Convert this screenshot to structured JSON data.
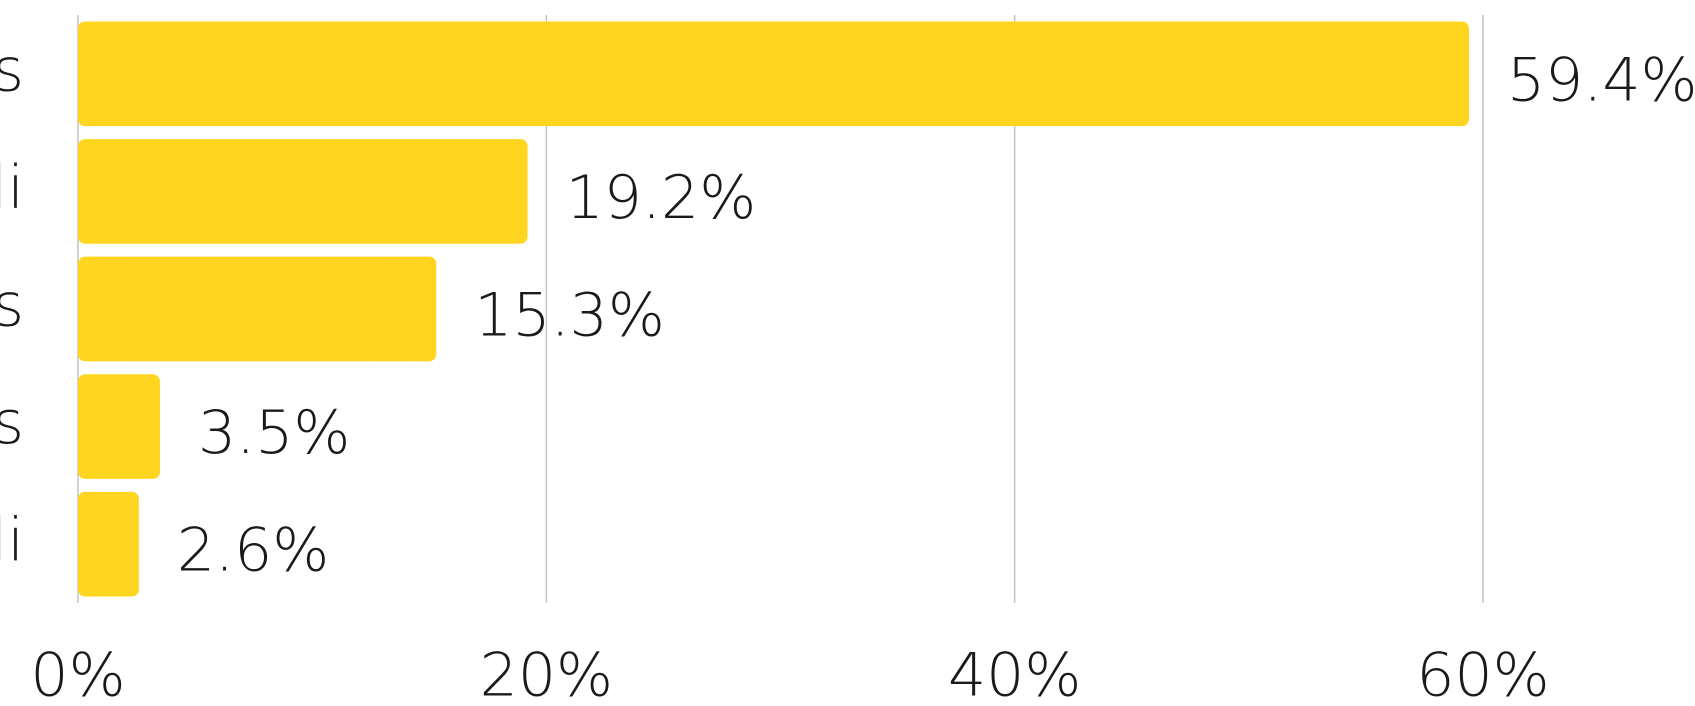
{
  "chart_data": {
    "type": "bar",
    "orientation": "horizontal",
    "categories": [
      "s",
      "li",
      "s",
      "s",
      "li"
    ],
    "values": [
      59.4,
      19.2,
      15.3,
      3.5,
      2.6
    ],
    "value_labels": [
      "59.4%",
      "19.2%",
      "15.3%",
      "3.5%",
      "2.6%"
    ],
    "color": "#ffd520",
    "xlim": [
      0,
      60
    ],
    "xticks": [
      {
        "value": 0,
        "label": "0%"
      },
      {
        "value": 20,
        "label": "20%"
      },
      {
        "value": 40,
        "label": "40%"
      },
      {
        "value": 60,
        "label": "60%"
      }
    ],
    "grid": true
  }
}
